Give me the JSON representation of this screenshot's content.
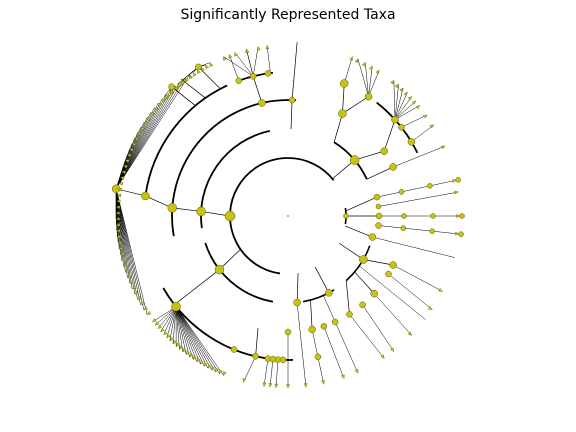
{
  "figure": {
    "title": "Significantly Represented Taxa"
  },
  "style": {
    "node_fill": "#c8c312",
    "node_stroke": "#5a5a00",
    "edge_color": "#000000",
    "background": "#ffffff"
  },
  "chart_data": {
    "type": "circular-cladogram",
    "title": "Significantly Represented Taxa",
    "levels": 6,
    "labels_shown": false
  }
}
